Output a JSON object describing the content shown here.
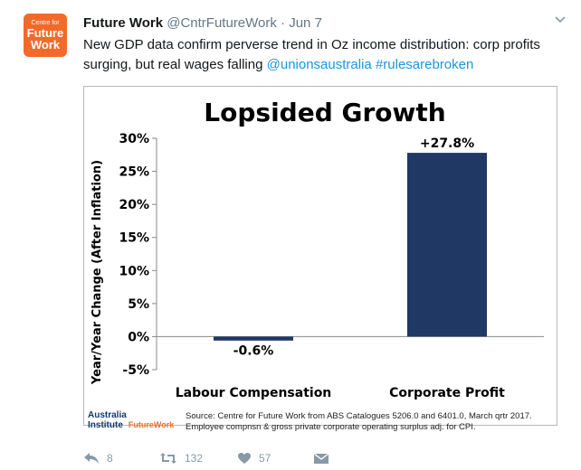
{
  "tweet": {
    "avatar": {
      "line1": "Centre for",
      "line2": "Future",
      "line3": "Work"
    },
    "display_name": "Future Work",
    "handle": "@CntrFutureWork",
    "separator": "·",
    "timestamp": "Jun 7",
    "text_main": "New GDP data confirm perverse trend in Oz income distribution: corp profits surging, but real wages falling ",
    "mention": "@unionsaustralia",
    "hashtag": "#rulesarebroken",
    "actions": {
      "replies": "8",
      "retweets": "132",
      "likes": "57"
    }
  },
  "card": {
    "source_line1": "Source: Centre for Future Work from ABS Catalogues 5206.0 and 6401.0, March qrtr 2017.",
    "source_line2": "Employee compnsn & gross private corporate operating surplus adj. for CPI.",
    "logo": {
      "line1": "Australia",
      "line2": "Institute",
      "line3": "FutureWork"
    }
  },
  "chart_data": {
    "type": "bar",
    "title": "Lopsided Growth",
    "ylabel": "Year/Year Change (After Inflation)",
    "xlabel": "",
    "categories": [
      "Labour Compensation",
      "Corporate Profit"
    ],
    "values": [
      -0.6,
      27.8
    ],
    "data_labels": [
      "-0.6%",
      "+27.8%"
    ],
    "ylim": [
      -5,
      30
    ],
    "yticks": [
      -5,
      0,
      5,
      10,
      15,
      20,
      25,
      30
    ],
    "ytick_labels": [
      "-5%",
      "0%",
      "5%",
      "10%",
      "15%",
      "20%",
      "25%",
      "30%"
    ],
    "bar_color": "#1f3864",
    "grid": false,
    "legend": "none"
  },
  "colors": {
    "brand": "#f26a2a",
    "link": "#1b95e0",
    "text": "#14171a",
    "muted": "#657786"
  }
}
